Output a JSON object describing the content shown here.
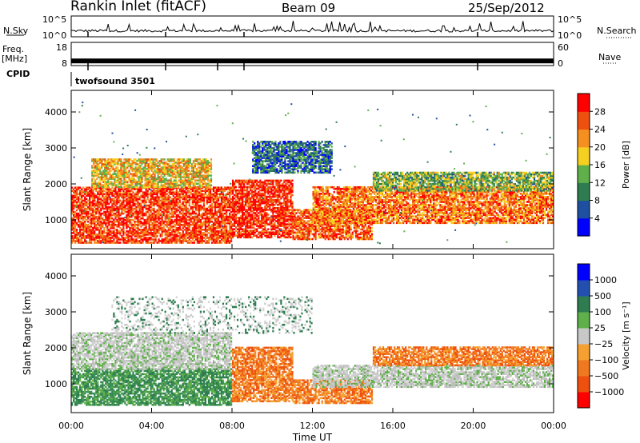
{
  "header": {
    "station": "Rankin Inlet (fitACF)",
    "beam": "Beam 09",
    "date": "25/Sep/2012"
  },
  "left_labels": {
    "nsky": "N.Sky",
    "freq": "Freq.",
    "freq_unit": "[MHz]",
    "cpid": "CPID"
  },
  "right_labels": {
    "nsearch": "N.Search",
    "nave": "Nave"
  },
  "cpid_name": "twofsound 3501",
  "chart_data": [
    {
      "type": "line",
      "panel": "noise",
      "ylabel": "N.Sky",
      "y_ticks_left": [
        "10^5",
        "10^0"
      ],
      "y_ticks_right": [
        "10^5",
        "10^0"
      ],
      "note": "N.Sky solid line near bottom with spikes; N.Search dotted"
    },
    {
      "type": "line",
      "panel": "freq_nave",
      "ylabel": "Freq. [MHz]",
      "y_ticks_left": [
        "18",
        "8"
      ],
      "y_ticks_right": [
        "60",
        "0"
      ],
      "freq_value": 10,
      "nave_value": 10
    },
    {
      "type": "heatmap",
      "panel": "power",
      "ylabel": "Slant Range [km]",
      "xlabel": "Time UT",
      "xlim": [
        0,
        24
      ],
      "ylim": [
        200,
        4600
      ],
      "x_ticks": [
        "00:00",
        "04:00",
        "08:00",
        "12:00",
        "16:00",
        "20:00",
        "00:00"
      ],
      "y_ticks": [
        1000,
        2000,
        3000,
        4000
      ],
      "colorbar": {
        "label": "Power [dB]",
        "ticks": [
          "28",
          "24",
          "20",
          "16",
          "12",
          "8",
          "4"
        ],
        "colors": [
          "#0000ff",
          "#1e4fa0",
          "#2e7d50",
          "#5fb04a",
          "#f5d020",
          "#f59020",
          "#ee5010",
          "#ff0000"
        ]
      },
      "bands": [
        {
          "t0": 0,
          "t1": 8,
          "r0": 350,
          "r1": 1900,
          "level": 0.85
        },
        {
          "t0": 1,
          "t1": 7,
          "r0": 1900,
          "r1": 2700,
          "level": 0.6
        },
        {
          "t0": 8,
          "t1": 11,
          "r0": 500,
          "r1": 2100,
          "level": 0.9
        },
        {
          "t0": 11,
          "t1": 15,
          "r0": 450,
          "r1": 1300,
          "level": 0.8
        },
        {
          "t0": 12,
          "t1": 24,
          "r0": 900,
          "r1": 1900,
          "level": 0.75
        },
        {
          "t0": 15,
          "t1": 24,
          "r0": 1800,
          "r1": 2300,
          "level": 0.45
        },
        {
          "t0": 9,
          "t1": 13,
          "r0": 2300,
          "r1": 3200,
          "level": 0.25
        }
      ]
    },
    {
      "type": "heatmap",
      "panel": "velocity",
      "ylabel": "Slant Range [km]",
      "xlabel": "Time UT",
      "xlim": [
        0,
        24
      ],
      "ylim": [
        200,
        4600
      ],
      "x_ticks": [
        "00:00",
        "04:00",
        "08:00",
        "12:00",
        "16:00",
        "20:00",
        "00:00"
      ],
      "y_ticks": [
        1000,
        2000,
        3000,
        4000
      ],
      "colorbar": {
        "label": "Velocity [m s⁻¹]",
        "ticks": [
          "1000",
          "500",
          "100",
          "25",
          "−25",
          "−100",
          "−500",
          "−1000"
        ],
        "colors": [
          "#ff0000",
          "#ee5010",
          "#f07820",
          "#f5a030",
          "#c8c8c8",
          "#5fb04a",
          "#2e7d50",
          "#2350b0",
          "#0000ff"
        ]
      },
      "bands": [
        {
          "t0": 0,
          "t1": 8,
          "r0": 400,
          "r1": 1400,
          "kind": "green"
        },
        {
          "t0": 0,
          "t1": 8,
          "r0": 1400,
          "r1": 2400,
          "kind": "grey"
        },
        {
          "t0": 8,
          "t1": 11,
          "r0": 500,
          "r1": 2000,
          "kind": "orange"
        },
        {
          "t0": 11,
          "t1": 15,
          "r0": 450,
          "r1": 1100,
          "kind": "orange"
        },
        {
          "t0": 12,
          "t1": 24,
          "r0": 900,
          "r1": 1500,
          "kind": "grey"
        },
        {
          "t0": 15,
          "t1": 24,
          "r0": 1500,
          "r1": 2000,
          "kind": "orange"
        },
        {
          "t0": 2,
          "t1": 12,
          "r0": 2400,
          "r1": 3400,
          "kind": "grey_sparse"
        }
      ]
    }
  ]
}
